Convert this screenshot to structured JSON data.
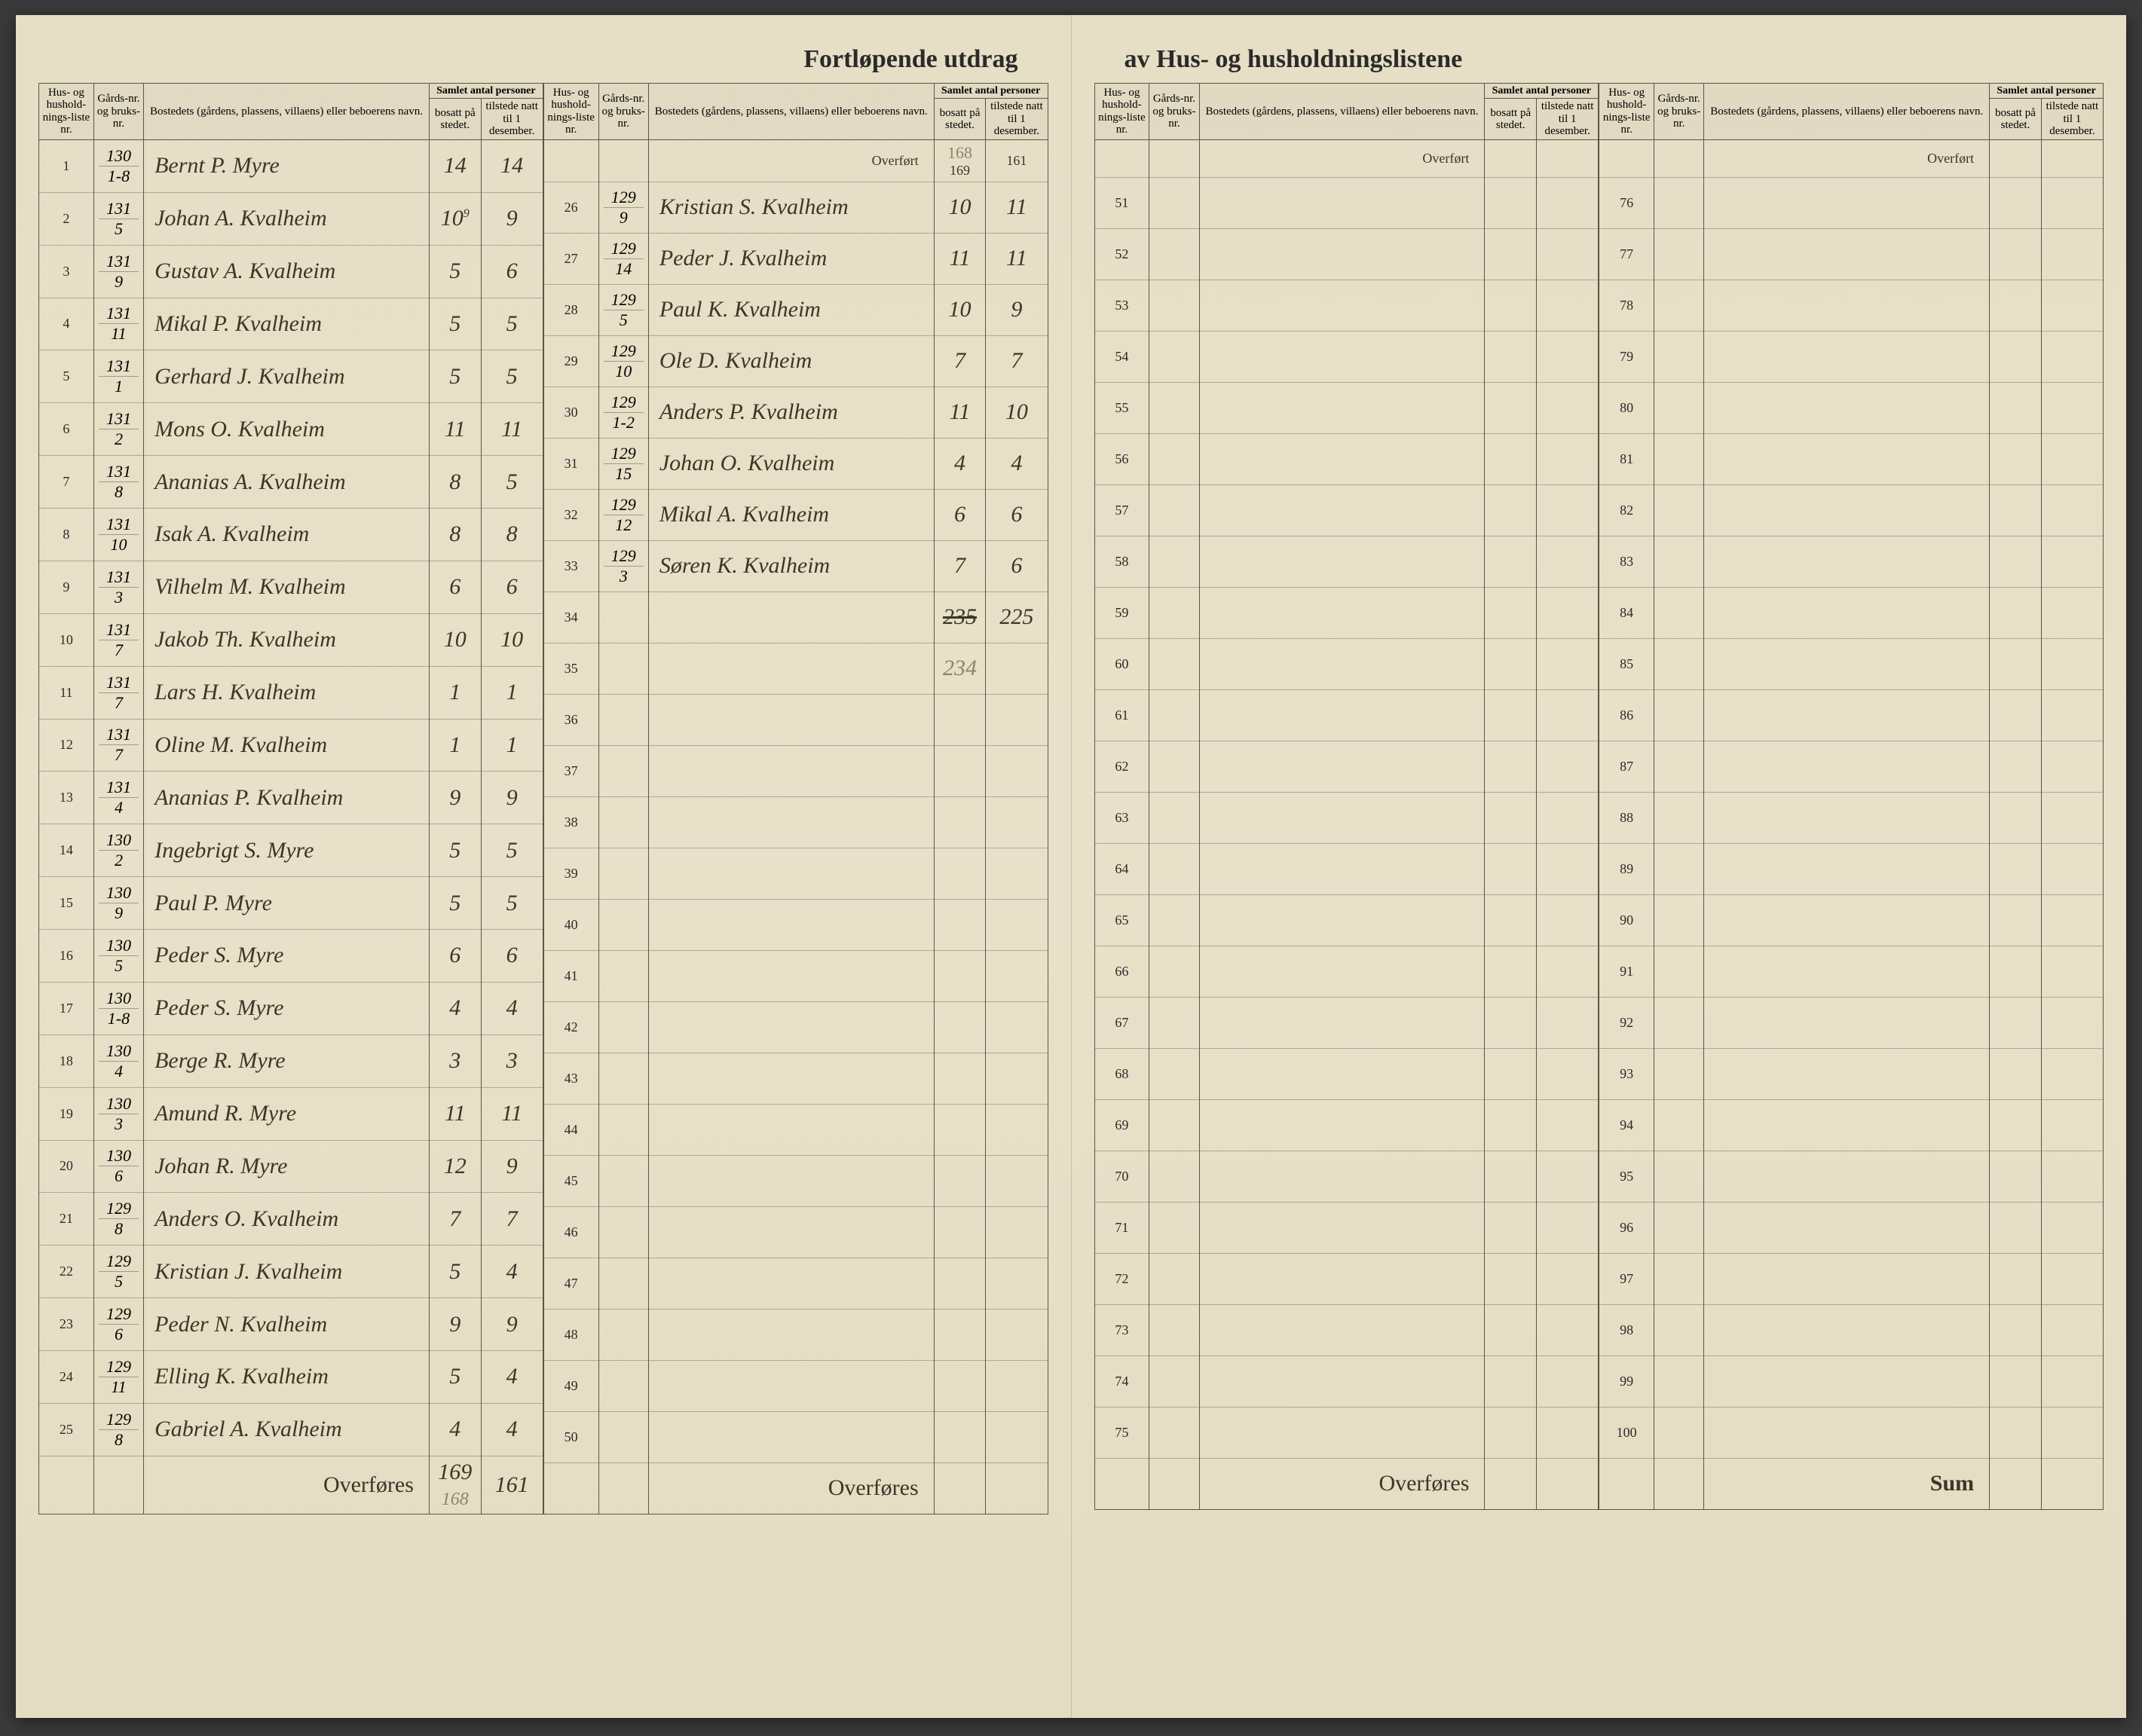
{
  "title_left": "Fortløpende utdrag",
  "title_right": "av Hus- og husholdningslistene",
  "headers": {
    "liste_nr": "Hus- og hushold-nings-liste nr.",
    "gards_nr": "Gårds-nr. og bruks-nr.",
    "bosted": "Bostedets (gårdens, plassens, villaens) eller beboerens navn.",
    "samlet": "Samlet antal personer",
    "bosatt": "bosatt på stedet.",
    "tilstede": "tilstede natt til 1 desember."
  },
  "overfort": "Overført",
  "overfores": "Overføres",
  "sum": "Sum",
  "carry_in": {
    "bosatt": "169",
    "bosatt_pencil": "168",
    "tilstede": "161"
  },
  "block1": [
    {
      "n": "1",
      "g1": "130",
      "g2": "1-8",
      "name": "Bernt P. Myre",
      "b": "14",
      "t": "14"
    },
    {
      "n": "2",
      "g1": "131",
      "g2": "5",
      "name": "Johan A. Kvalheim",
      "b": "10",
      "t": "9",
      "b_sup": "9"
    },
    {
      "n": "3",
      "g1": "131",
      "g2": "9",
      "name": "Gustav A. Kvalheim",
      "b": "5",
      "t": "6"
    },
    {
      "n": "4",
      "g1": "131",
      "g2": "11",
      "name": "Mikal P. Kvalheim",
      "b": "5",
      "t": "5"
    },
    {
      "n": "5",
      "g1": "131",
      "g2": "1",
      "name": "Gerhard J. Kvalheim",
      "b": "5",
      "t": "5"
    },
    {
      "n": "6",
      "g1": "131",
      "g2": "2",
      "name": "Mons O. Kvalheim",
      "b": "11",
      "t": "11"
    },
    {
      "n": "7",
      "g1": "131",
      "g2": "8",
      "name": "Ananias A. Kvalheim",
      "b": "8",
      "t": "5"
    },
    {
      "n": "8",
      "g1": "131",
      "g2": "10",
      "name": "Isak A. Kvalheim",
      "b": "8",
      "t": "8"
    },
    {
      "n": "9",
      "g1": "131",
      "g2": "3",
      "name": "Vilhelm M. Kvalheim",
      "b": "6",
      "t": "6"
    },
    {
      "n": "10",
      "g1": "131",
      "g2": "7",
      "name": "Jakob Th. Kvalheim",
      "b": "10",
      "t": "10"
    },
    {
      "n": "11",
      "g1": "131",
      "g2": "7",
      "name": "Lars H. Kvalheim",
      "b": "1",
      "t": "1"
    },
    {
      "n": "12",
      "g1": "131",
      "g2": "7",
      "name": "Oline M. Kvalheim",
      "b": "1",
      "t": "1"
    },
    {
      "n": "13",
      "g1": "131",
      "g2": "4",
      "name": "Ananias P. Kvalheim",
      "b": "9",
      "t": "9"
    },
    {
      "n": "14",
      "g1": "130",
      "g2": "2",
      "name": "Ingebrigt S. Myre",
      "b": "5",
      "t": "5"
    },
    {
      "n": "15",
      "g1": "130",
      "g2": "9",
      "name": "Paul P. Myre",
      "b": "5",
      "t": "5"
    },
    {
      "n": "16",
      "g1": "130",
      "g2": "5",
      "name": "Peder S. Myre",
      "b": "6",
      "t": "6"
    },
    {
      "n": "17",
      "g1": "130",
      "g2": "1-8",
      "name": "Peder S. Myre",
      "b": "4",
      "t": "4"
    },
    {
      "n": "18",
      "g1": "130",
      "g2": "4",
      "name": "Berge R. Myre",
      "b": "3",
      "t": "3"
    },
    {
      "n": "19",
      "g1": "130",
      "g2": "3",
      "name": "Amund R. Myre",
      "b": "11",
      "t": "11"
    },
    {
      "n": "20",
      "g1": "130",
      "g2": "6",
      "name": "Johan R. Myre",
      "b": "12",
      "t": "9"
    },
    {
      "n": "21",
      "g1": "129",
      "g2": "8",
      "name": "Anders O. Kvalheim",
      "b": "7",
      "t": "7"
    },
    {
      "n": "22",
      "g1": "129",
      "g2": "5",
      "name": "Kristian J. Kvalheim",
      "b": "5",
      "t": "4"
    },
    {
      "n": "23",
      "g1": "129",
      "g2": "6",
      "name": "Peder N. Kvalheim",
      "b": "9",
      "t": "9"
    },
    {
      "n": "24",
      "g1": "129",
      "g2": "11",
      "name": "Elling K. Kvalheim",
      "b": "5",
      "t": "4"
    },
    {
      "n": "25",
      "g1": "129",
      "g2": "8",
      "name": "Gabriel A. Kvalheim",
      "b": "4",
      "t": "4"
    }
  ],
  "block1_footer": {
    "bosatt": "169",
    "bosatt_pencil": "168",
    "tilstede": "161"
  },
  "block2": [
    {
      "n": "26",
      "g1": "129",
      "g2": "9",
      "name": "Kristian S. Kvalheim",
      "b": "10",
      "t": "11"
    },
    {
      "n": "27",
      "g1": "129",
      "g2": "14",
      "name": "Peder J. Kvalheim",
      "b": "11",
      "t": "11"
    },
    {
      "n": "28",
      "g1": "129",
      "g2": "5",
      "name": "Paul K. Kvalheim",
      "b": "10",
      "t": "9"
    },
    {
      "n": "29",
      "g1": "129",
      "g2": "10",
      "name": "Ole D. Kvalheim",
      "b": "7",
      "t": "7"
    },
    {
      "n": "30",
      "g1": "129",
      "g2": "1-2",
      "name": "Anders P. Kvalheim",
      "b": "11",
      "t": "10"
    },
    {
      "n": "31",
      "g1": "129",
      "g2": "15",
      "name": "Johan O. Kvalheim",
      "b": "4",
      "t": "4"
    },
    {
      "n": "32",
      "g1": "129",
      "g2": "12",
      "name": "Mikal A. Kvalheim",
      "b": "6",
      "t": "6"
    },
    {
      "n": "33",
      "g1": "129",
      "g2": "3",
      "name": "Søren K. Kvalheim",
      "b": "7",
      "t": "6"
    }
  ],
  "block2_totals": {
    "bosatt": "235",
    "tilstede": "225",
    "pencil": "234"
  },
  "block2_empty_start": 34,
  "block2_empty_end": 50,
  "block3_start": 51,
  "block3_end": 75,
  "block4_start": 76,
  "block4_end": 100,
  "colors": {
    "paper": "#e8e0c8",
    "ink": "#2a2a2a",
    "script": "#3a3628",
    "rule": "#5a5548",
    "pencil": "#8a8570"
  }
}
